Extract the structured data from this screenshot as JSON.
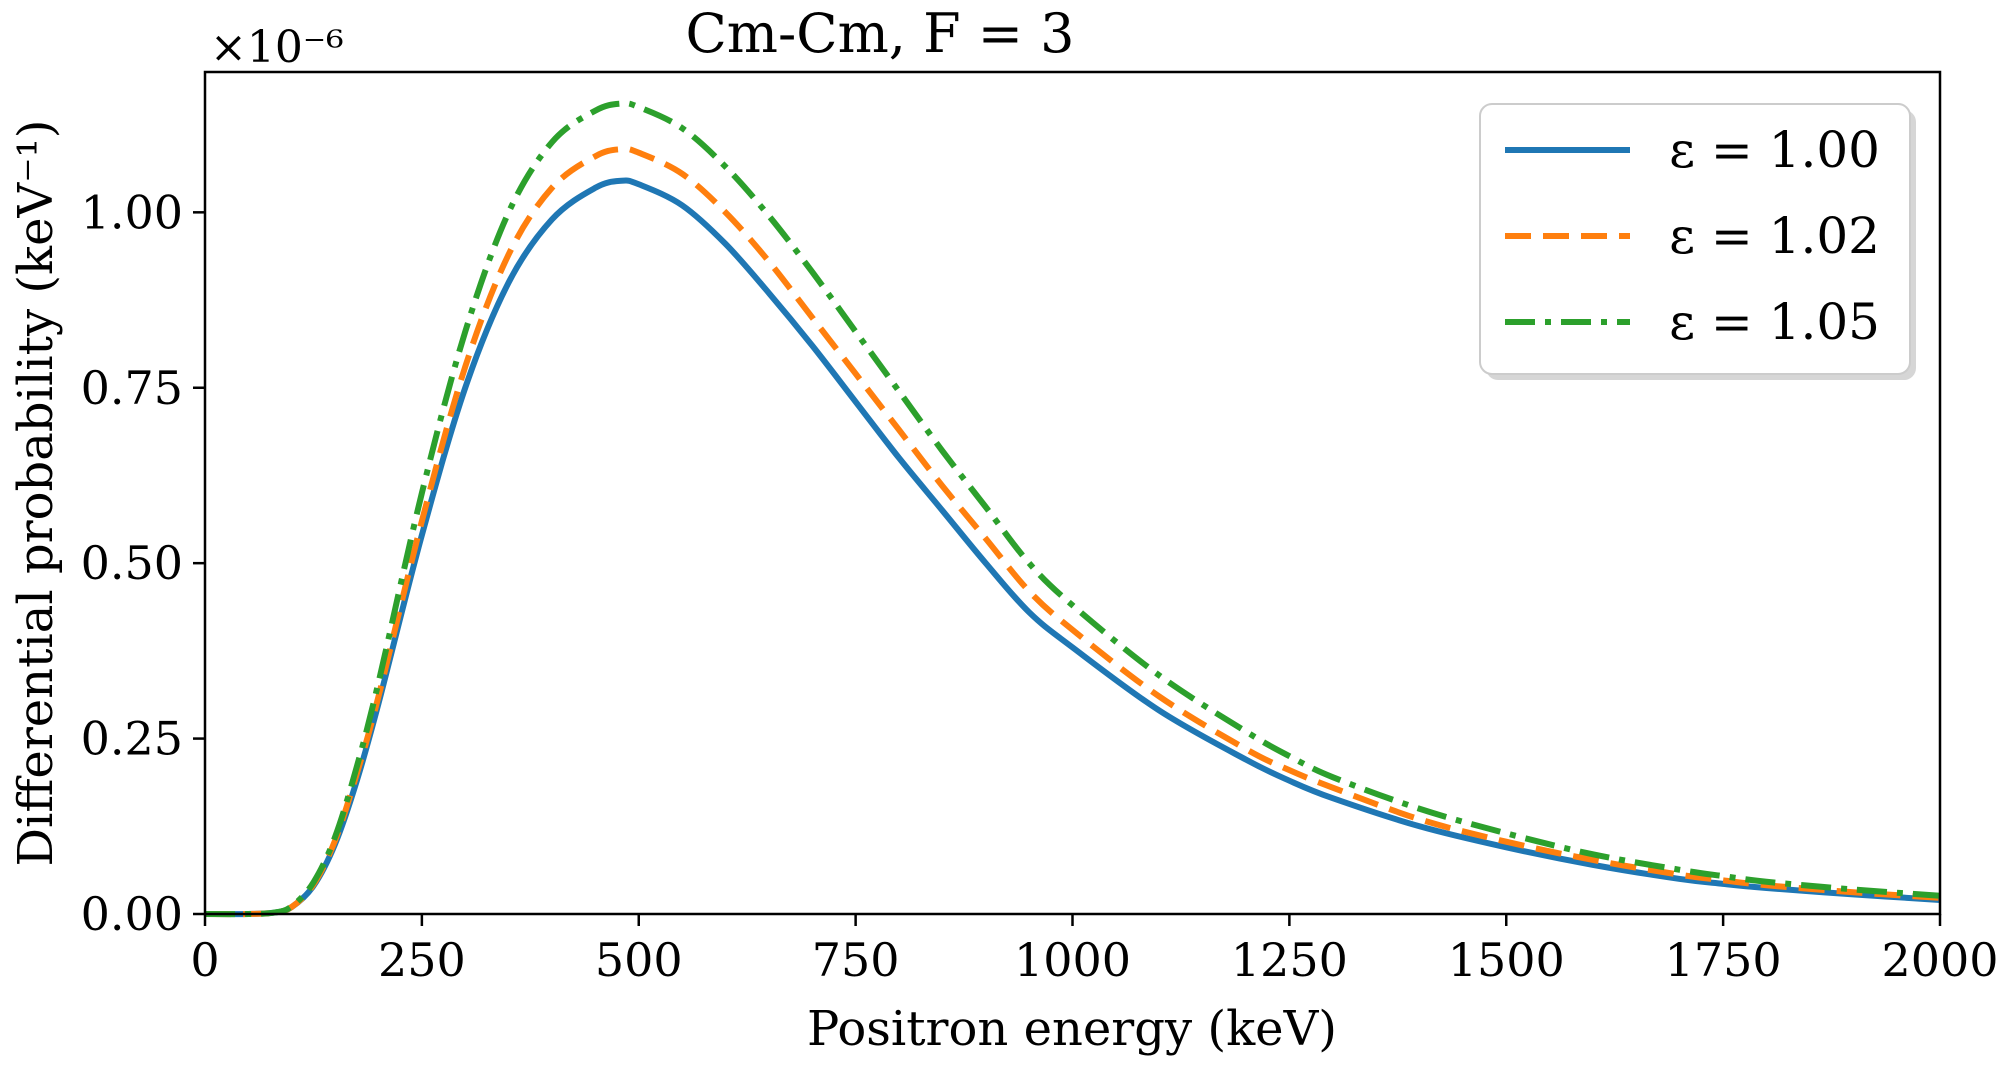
{
  "chart_data": {
    "type": "line",
    "title": "Cm-Cm, F = 3",
    "xlabel": "Positron energy (keV)",
    "ylabel": "Differential probability (keV⁻¹)",
    "y_multiplier": "×10⁻⁶",
    "xlim": [
      0,
      2000
    ],
    "ylim": [
      0,
      1.2
    ],
    "x_ticks": [
      0,
      250,
      500,
      750,
      1000,
      1250,
      1500,
      1750,
      2000
    ],
    "x_tick_labels": [
      "0",
      "250",
      "500",
      "750",
      "1000",
      "1250",
      "1500",
      "1750",
      "2000"
    ],
    "y_ticks": [
      0,
      0.25,
      0.5,
      0.75,
      1.0
    ],
    "y_tick_labels": [
      "0.00",
      "0.25",
      "0.50",
      "0.75",
      "1.00"
    ],
    "grid": false,
    "legend_position": "top-right",
    "x": [
      0,
      50,
      80,
      100,
      125,
      150,
      175,
      200,
      250,
      300,
      350,
      400,
      450,
      480,
      500,
      550,
      600,
      650,
      700,
      750,
      800,
      850,
      900,
      950,
      1000,
      1100,
      1200,
      1250,
      1300,
      1400,
      1500,
      1600,
      1700,
      1750,
      1800,
      1900,
      2000
    ],
    "series": [
      {
        "name": "ε = 1.00",
        "color": "#1f77b4",
        "style": "solid",
        "values": [
          0,
          0,
          0.002,
          0.01,
          0.04,
          0.1,
          0.19,
          0.3,
          0.54,
          0.75,
          0.9,
          0.99,
          1.035,
          1.045,
          1.04,
          1.01,
          0.955,
          0.885,
          0.81,
          0.73,
          0.65,
          0.575,
          0.5,
          0.43,
          0.38,
          0.29,
          0.22,
          0.19,
          0.165,
          0.125,
          0.095,
          0.07,
          0.05,
          0.043,
          0.037,
          0.028,
          0.02
        ]
      },
      {
        "name": "ε = 1.02",
        "color": "#ff7f0e",
        "style": "dashed",
        "values": [
          0,
          0,
          0.002,
          0.01,
          0.042,
          0.105,
          0.2,
          0.31,
          0.56,
          0.78,
          0.94,
          1.035,
          1.08,
          1.09,
          1.085,
          1.055,
          1.0,
          0.93,
          0.85,
          0.77,
          0.69,
          0.61,
          0.535,
          0.46,
          0.405,
          0.31,
          0.235,
          0.205,
          0.18,
          0.135,
          0.103,
          0.077,
          0.056,
          0.048,
          0.041,
          0.031,
          0.023
        ]
      },
      {
        "name": "ε = 1.05",
        "color": "#2ca02c",
        "style": "dashdot",
        "values": [
          0,
          0,
          0.002,
          0.011,
          0.045,
          0.11,
          0.21,
          0.33,
          0.6,
          0.83,
          1.0,
          1.1,
          1.145,
          1.155,
          1.15,
          1.12,
          1.065,
          0.995,
          0.915,
          0.83,
          0.745,
          0.66,
          0.58,
          0.5,
          0.44,
          0.34,
          0.26,
          0.225,
          0.195,
          0.15,
          0.115,
          0.085,
          0.063,
          0.054,
          0.046,
          0.035,
          0.026
        ]
      }
    ]
  }
}
